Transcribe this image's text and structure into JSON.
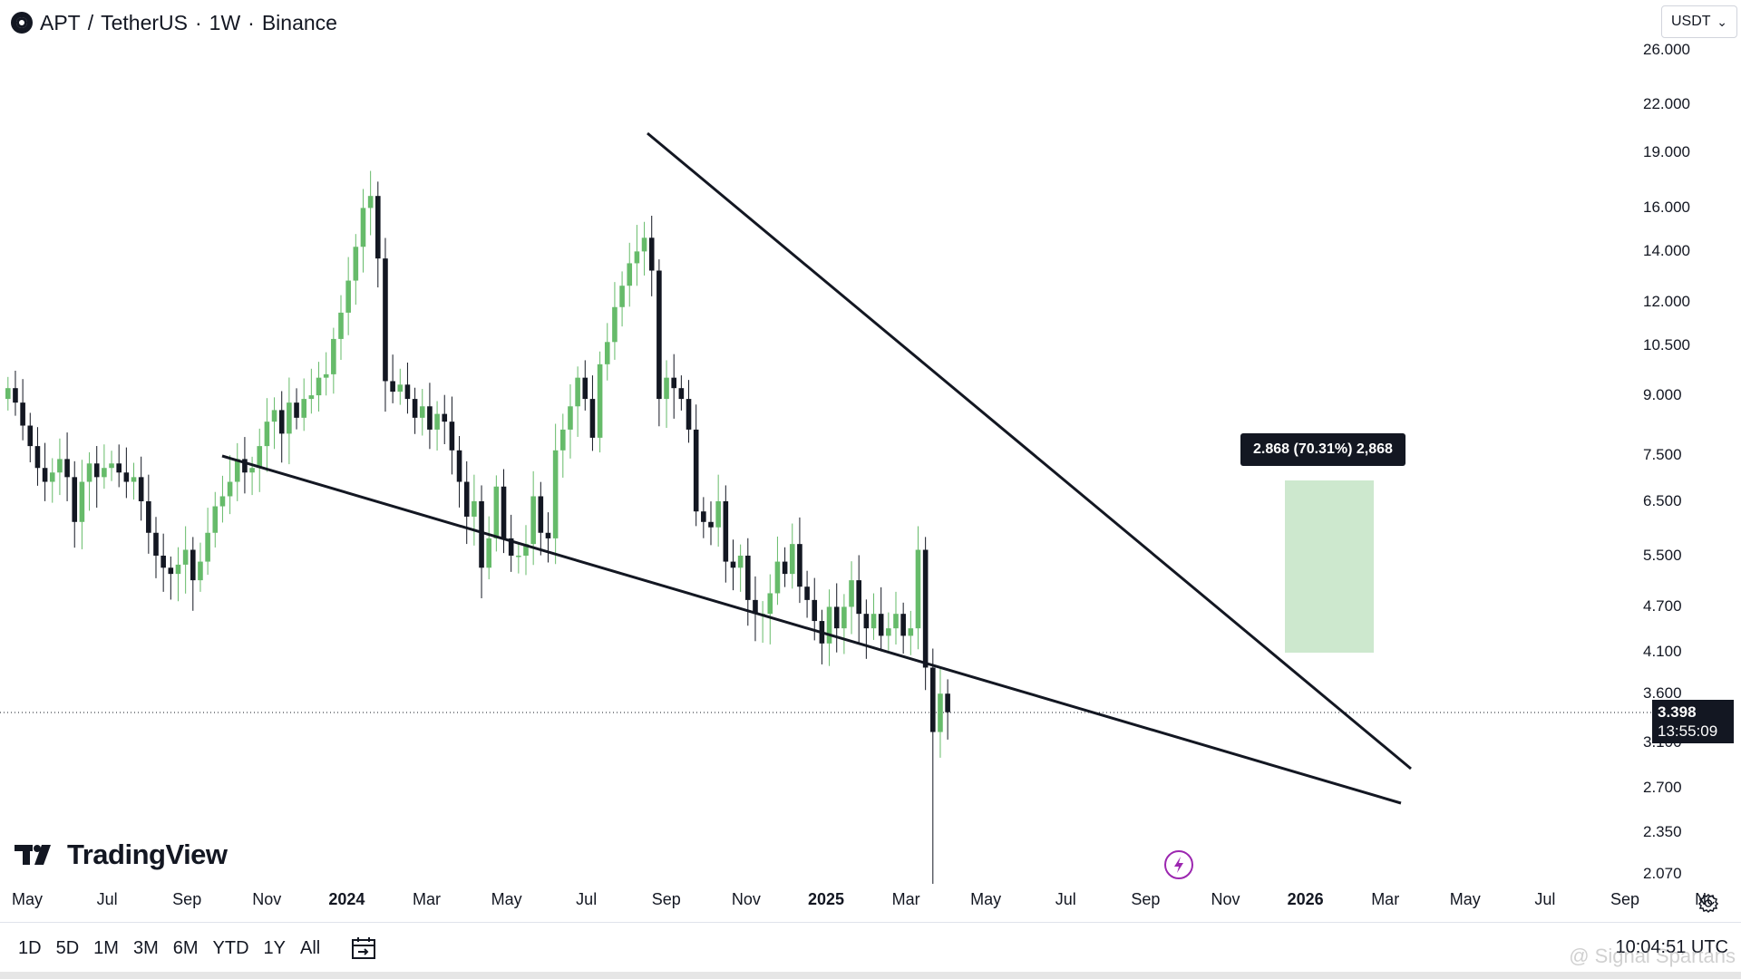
{
  "header": {
    "symbol": "APT",
    "separator": "/",
    "quote": "TetherUS",
    "interval": "1W",
    "exchange": "Binance",
    "dot": "·"
  },
  "currency_selector": {
    "value": "USDT",
    "caret": "⌄"
  },
  "price_axis": {
    "labels": [
      "26.000",
      "22.000",
      "19.000",
      "16.000",
      "14.000",
      "12.000",
      "10.500",
      "9.000",
      "7.500",
      "6.500",
      "5.500",
      "4.700",
      "4.100",
      "3.600",
      "3.100",
      "2.700",
      "2.350",
      "2.070"
    ]
  },
  "last_price": {
    "value": "3.398",
    "countdown": "13:55:09"
  },
  "annotation": {
    "text": "2.868 (70.31%) 2,868"
  },
  "time_axis": {
    "labels": [
      "May",
      "Jul",
      "Sep",
      "Nov",
      "2024",
      "Mar",
      "May",
      "Jul",
      "Sep",
      "Nov",
      "2025",
      "Mar",
      "May",
      "Jul",
      "Sep",
      "Nov",
      "2026",
      "Mar",
      "May",
      "Jul",
      "Sep",
      "Nc"
    ],
    "bold": [
      false,
      false,
      false,
      false,
      true,
      false,
      false,
      false,
      false,
      false,
      true,
      false,
      false,
      false,
      false,
      false,
      true,
      false,
      false,
      false,
      false,
      false
    ]
  },
  "branding": {
    "logo_text": "TradingView"
  },
  "toolbar": {
    "timeframes": [
      "1D",
      "5D",
      "1M",
      "3M",
      "6M",
      "YTD",
      "1Y",
      "All"
    ],
    "date_range_icon": "calendar-goto-icon"
  },
  "clock": {
    "time": "10:04:51 UTC"
  },
  "credit": {
    "text": "@ Signal Spartans"
  },
  "colors": {
    "up": "#66bb6a",
    "down": "#131722",
    "target_zone": "#c8e6c9",
    "trendline": "#131722",
    "last_price_line": "#131722"
  },
  "chart_data": {
    "type": "candlestick",
    "scale": "log",
    "ylim": [
      2.0,
      26.0
    ],
    "x_ticks": [
      "May",
      "Jul",
      "Sep",
      "Nov",
      "2024",
      "Mar",
      "May",
      "Jul",
      "Sep",
      "Nov",
      "2025",
      "Mar",
      "May",
      "Jul",
      "Sep",
      "Nov",
      "2026",
      "Mar",
      "May",
      "Jul",
      "Sep",
      "Nc"
    ],
    "y_ticks": [
      26,
      22,
      19,
      16,
      14,
      12,
      10.5,
      9,
      7.5,
      6.5,
      5.5,
      4.7,
      4.1,
      3.6,
      3.1,
      2.7,
      2.35,
      2.07
    ],
    "start_date": "2023-04-17",
    "candle_interval": "1W",
    "closes": [
      9.2,
      8.8,
      8.2,
      7.7,
      7.2,
      6.9,
      7.1,
      7.4,
      7.0,
      6.1,
      6.9,
      7.3,
      7.0,
      7.2,
      7.3,
      7.1,
      6.9,
      7.0,
      6.5,
      5.9,
      5.5,
      5.3,
      5.2,
      5.35,
      5.6,
      5.1,
      5.4,
      5.9,
      6.4,
      6.6,
      6.9,
      7.4,
      7.1,
      7.2,
      7.7,
      8.3,
      8.6,
      8.0,
      8.8,
      8.4,
      8.9,
      9.0,
      9.5,
      9.6,
      10.7,
      11.6,
      12.8,
      14.2,
      16.0,
      16.6,
      13.7,
      9.4,
      9.1,
      9.3,
      8.9,
      8.4,
      8.7,
      8.1,
      8.5,
      8.3,
      7.6,
      6.9,
      6.2,
      6.5,
      5.3,
      5.8,
      6.8,
      5.8,
      5.5,
      5.5,
      5.7,
      6.6,
      5.9,
      5.8,
      7.6,
      8.1,
      8.7,
      9.5,
      8.9,
      7.9,
      9.9,
      10.6,
      11.8,
      12.6,
      13.5,
      14.0,
      14.6,
      13.2,
      8.9,
      9.5,
      9.2,
      8.9,
      8.1,
      6.3,
      6.1,
      6.0,
      6.5,
      5.4,
      5.3,
      5.5,
      4.8,
      4.6,
      4.6,
      4.9,
      5.4,
      5.2,
      5.7,
      5.0,
      4.8,
      4.5,
      4.2,
      4.7,
      4.4,
      4.7,
      5.1,
      4.6,
      4.4,
      4.6,
      4.3,
      4.4,
      4.6,
      4.3,
      4.4,
      5.6,
      3.9,
      3.2,
      3.6,
      3.4
    ],
    "highs": [
      9.9,
      9.5
    ],
    "lows": [
      2.0
    ],
    "overlays": {
      "upper_trendline": {
        "from": "2024-10-14 @ 20.3",
        "to": "2026-03-16 @ 2.83"
      },
      "lower_trendline": {
        "from": "2023-09-18 @ 7.55",
        "to": "2026-04-13 @ 2.58"
      },
      "target_zone": {
        "from_price": 4.12,
        "to_price": 6.99,
        "label": "2.868 (70.31%) 2,868"
      }
    },
    "last_price": 3.398
  }
}
